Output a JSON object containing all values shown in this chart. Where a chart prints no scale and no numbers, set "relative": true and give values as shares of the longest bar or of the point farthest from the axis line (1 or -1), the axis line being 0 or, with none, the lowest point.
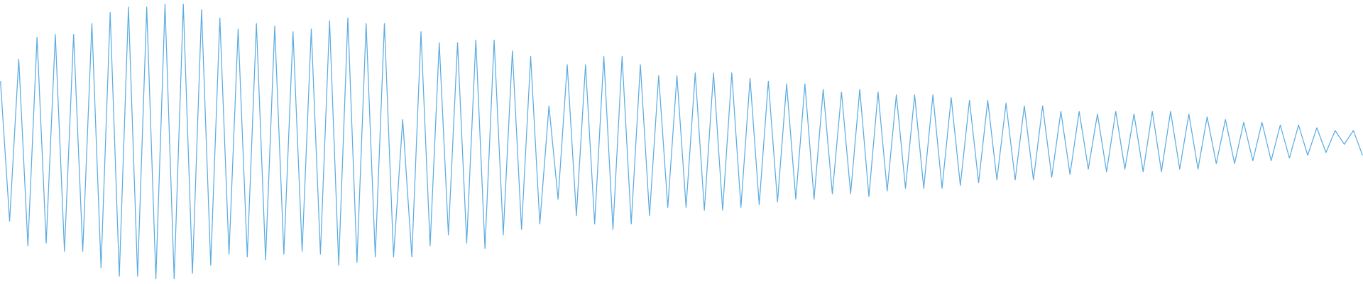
{
  "chart_data": {
    "type": "line",
    "relative": true,
    "categories": [
      null,
      null,
      null,
      null,
      null,
      null,
      null,
      null,
      null,
      null,
      null,
      null,
      null,
      null,
      null,
      null,
      null,
      null,
      null,
      null,
      null,
      null,
      null,
      null,
      null,
      null,
      null,
      null,
      null,
      null,
      null,
      null,
      null,
      null,
      null,
      null,
      null,
      null,
      null,
      null,
      null,
      null,
      null,
      null,
      null,
      null,
      null,
      null,
      null,
      null,
      null,
      null,
      null,
      null,
      null,
      null,
      null,
      null,
      null,
      null,
      null,
      null,
      null,
      null,
      null,
      null,
      null,
      null,
      null,
      null,
      null,
      null,
      null,
      null,
      null,
      null,
      null,
      null,
      null,
      null,
      null,
      null,
      null,
      null,
      null,
      null,
      null,
      null,
      null,
      null,
      null,
      null,
      null,
      null,
      null,
      null,
      null,
      null,
      null,
      null,
      null,
      null,
      null,
      null,
      null,
      null,
      null,
      null,
      null,
      null,
      null,
      null,
      null,
      null,
      null,
      null,
      null,
      null,
      null,
      null,
      null,
      null,
      null,
      null,
      null,
      null,
      null,
      null,
      null,
      null,
      null,
      null,
      null,
      null,
      null,
      null,
      null,
      null,
      null,
      null,
      null,
      null,
      null,
      null,
      null,
      null,
      null,
      null,
      null,
      null
    ],
    "series": [
      {
        "color": "#5dade2",
        "values": [
          0.72,
          0.21,
          0.8,
          0.12,
          0.88,
          0.13,
          0.89,
          0.1,
          0.89,
          0.1,
          0.93,
          0.04,
          0.97,
          0.01,
          0.99,
          0.01,
          0.99,
          0.0,
          1.0,
          0.0,
          1.0,
          0.02,
          0.98,
          0.05,
          0.95,
          0.09,
          0.91,
          0.08,
          0.93,
          0.07,
          0.92,
          0.09,
          0.9,
          0.1,
          0.91,
          0.09,
          0.94,
          0.05,
          0.95,
          0.06,
          0.93,
          0.08,
          0.93,
          0.08,
          0.58,
          0.08,
          0.9,
          0.12,
          0.86,
          0.16,
          0.86,
          0.13,
          0.87,
          0.11,
          0.87,
          0.16,
          0.83,
          0.18,
          0.81,
          0.2,
          0.63,
          0.29,
          0.78,
          0.23,
          0.78,
          0.2,
          0.81,
          0.18,
          0.81,
          0.2,
          0.78,
          0.23,
          0.74,
          0.26,
          0.74,
          0.26,
          0.75,
          0.25,
          0.75,
          0.25,
          0.75,
          0.26,
          0.73,
          0.27,
          0.72,
          0.28,
          0.71,
          0.29,
          0.71,
          0.29,
          0.69,
          0.31,
          0.68,
          0.31,
          0.69,
          0.3,
          0.68,
          0.32,
          0.67,
          0.33,
          0.67,
          0.33,
          0.67,
          0.33,
          0.66,
          0.34,
          0.65,
          0.35,
          0.65,
          0.36,
          0.64,
          0.36,
          0.63,
          0.36,
          0.63,
          0.37,
          0.61,
          0.38,
          0.61,
          0.4,
          0.6,
          0.39,
          0.61,
          0.4,
          0.6,
          0.39,
          0.61,
          0.39,
          0.61,
          0.4,
          0.6,
          0.4,
          0.59,
          0.42,
          0.58,
          0.42,
          0.57,
          0.43,
          0.57,
          0.43,
          0.56,
          0.44,
          0.56,
          0.45,
          0.55,
          0.46,
          0.54,
          0.49,
          0.54,
          0.45
        ]
      }
    ]
  }
}
